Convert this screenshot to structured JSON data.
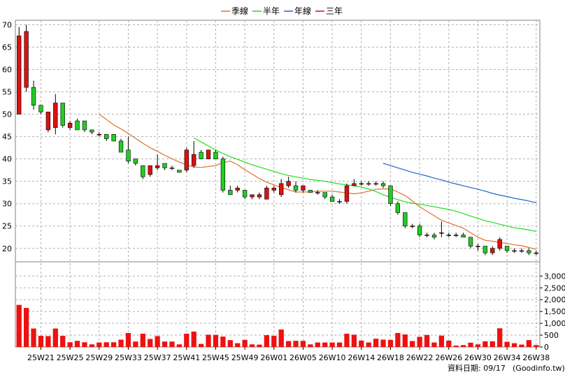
{
  "chart_data": {
    "type": "candlestick+volume",
    "legend": [
      {
        "name": "季線",
        "color": "#e0702a"
      },
      {
        "name": "半年",
        "color": "#22dd22"
      },
      {
        "name": "年線",
        "color": "#2266cc"
      },
      {
        "name": "三年",
        "color": "#dd1111"
      }
    ],
    "colors": {
      "up": "#dd1111",
      "down": "#22cc22",
      "volume": "#ee1111",
      "grid": "#b0b0b0"
    },
    "price_axis": {
      "min": 17,
      "max": 71,
      "ticks": [
        20,
        25,
        30,
        35,
        40,
        45,
        50,
        55,
        60,
        65,
        70
      ]
    },
    "volume_axis": {
      "min": 0,
      "max": 3600,
      "ticks": [
        0,
        500,
        1000,
        1500,
        2000,
        2500,
        3000
      ],
      "tick_labels": [
        "0",
        "500",
        "1,000",
        "1,500",
        "2,000",
        "2,500",
        "3,000"
      ]
    },
    "x_labels": [
      {
        "i": 3,
        "label": "25W21"
      },
      {
        "i": 7,
        "label": "25W25"
      },
      {
        "i": 11,
        "label": "25W29"
      },
      {
        "i": 15,
        "label": "25W33"
      },
      {
        "i": 19,
        "label": "25W37"
      },
      {
        "i": 23,
        "label": "25W41"
      },
      {
        "i": 27,
        "label": "25W45"
      },
      {
        "i": 31,
        "label": "25W49"
      },
      {
        "i": 35,
        "label": "26W01"
      },
      {
        "i": 39,
        "label": "26W05"
      },
      {
        "i": 43,
        "label": "26W10"
      },
      {
        "i": 47,
        "label": "26W14"
      },
      {
        "i": 51,
        "label": "26W18"
      },
      {
        "i": 55,
        "label": "26W22"
      },
      {
        "i": 59,
        "label": "26W26"
      },
      {
        "i": 63,
        "label": "26W30"
      },
      {
        "i": 67,
        "label": "26W34"
      },
      {
        "i": 71,
        "label": "26W38"
      }
    ],
    "candles": [
      [
        50,
        67.5,
        69.5,
        50
      ],
      [
        56,
        68.5,
        70,
        55
      ],
      [
        56,
        52,
        57.5,
        51
      ],
      [
        52,
        50.5,
        52,
        50
      ],
      [
        46.5,
        50.5,
        50.5,
        46
      ],
      [
        47,
        52.5,
        54.5,
        45.5
      ],
      [
        52.5,
        47.5,
        52.5,
        47
      ],
      [
        47,
        48,
        48.5,
        46.5
      ],
      [
        48.5,
        46.5,
        49,
        46.5
      ],
      [
        48.5,
        46.5,
        48.5,
        46
      ],
      [
        46.5,
        46,
        46.5,
        45.5
      ],
      [
        45.5,
        45.5,
        46,
        45
      ],
      [
        45.5,
        44.5,
        45.5,
        44
      ],
      [
        45.5,
        44,
        45.5,
        44
      ],
      [
        44,
        41.5,
        44.5,
        41.5
      ],
      [
        42,
        39.5,
        45,
        39
      ],
      [
        40,
        39,
        40,
        38.5
      ],
      [
        38.5,
        36,
        38.5,
        35.5
      ],
      [
        36.5,
        38.5,
        38.5,
        36
      ],
      [
        38,
        38.5,
        41,
        37.5
      ],
      [
        39,
        38,
        39,
        37.5
      ],
      [
        38,
        38,
        38.5,
        37.5
      ],
      [
        37.5,
        37,
        37.5,
        37
      ],
      [
        37.5,
        42,
        42.5,
        37
      ],
      [
        38.5,
        41,
        44,
        38
      ],
      [
        41.5,
        40,
        42,
        40
      ],
      [
        40,
        42,
        42,
        40
      ],
      [
        41.5,
        40,
        42,
        40
      ],
      [
        40,
        33,
        40.5,
        32.5
      ],
      [
        33,
        32,
        34,
        32
      ],
      [
        33,
        33.5,
        34,
        32.5
      ],
      [
        33,
        31.5,
        33,
        31
      ],
      [
        31.5,
        32,
        32,
        31
      ],
      [
        31.5,
        32,
        32.5,
        31
      ],
      [
        31,
        33.5,
        34,
        31
      ],
      [
        33,
        33.5,
        34,
        32.5
      ],
      [
        32,
        34.5,
        35.5,
        31.5
      ],
      [
        34,
        35,
        36,
        33.5
      ],
      [
        34,
        33,
        35,
        32.5
      ],
      [
        33,
        34,
        34,
        32.5
      ],
      [
        33,
        32.5,
        33,
        32.5
      ],
      [
        32.5,
        32.5,
        33,
        32
      ],
      [
        32.5,
        31.5,
        32.5,
        31
      ],
      [
        31.5,
        30.5,
        32,
        30.5
      ],
      [
        30.5,
        30.5,
        31,
        30
      ],
      [
        30.5,
        34,
        34.5,
        30
      ],
      [
        34,
        34.5,
        35.5,
        34
      ],
      [
        34.5,
        34.5,
        35,
        34
      ],
      [
        34.5,
        34.5,
        35,
        34
      ],
      [
        34.5,
        34.5,
        35,
        34
      ],
      [
        34.5,
        34,
        35,
        33.5
      ],
      [
        34,
        30,
        34,
        29.5
      ],
      [
        30,
        28,
        30.5,
        27.5
      ],
      [
        28,
        25,
        28,
        24.5
      ],
      [
        25,
        25,
        25.5,
        24.5
      ],
      [
        25,
        23,
        25.5,
        22.5
      ],
      [
        23,
        23,
        23.5,
        22.5
      ],
      [
        23,
        22.5,
        23.5,
        22
      ],
      [
        23.5,
        23.5,
        26,
        22.5
      ],
      [
        23,
        23,
        23.5,
        22.5
      ],
      [
        23,
        23,
        23.5,
        22.5
      ],
      [
        23,
        22.5,
        23.5,
        22.5
      ],
      [
        22.5,
        20.5,
        22.5,
        20
      ],
      [
        20.5,
        20.5,
        21,
        19.5
      ],
      [
        20.5,
        19,
        20.5,
        18.5
      ],
      [
        19,
        20,
        20.5,
        18.5
      ],
      [
        20,
        22,
        22.5,
        19.5
      ],
      [
        20.5,
        19.5,
        20.5,
        19
      ],
      [
        19.5,
        19.5,
        20,
        19
      ],
      [
        19.5,
        19.5,
        20,
        19
      ],
      [
        19.5,
        19,
        20,
        18.5
      ],
      [
        19,
        19,
        19.5,
        18.5
      ]
    ],
    "volume": [
      1780,
      1650,
      780,
      470,
      460,
      780,
      470,
      200,
      260,
      200,
      110,
      190,
      200,
      200,
      310,
      590,
      230,
      560,
      340,
      460,
      230,
      230,
      110,
      560,
      650,
      130,
      520,
      510,
      440,
      290,
      160,
      300,
      110,
      100,
      500,
      470,
      740,
      250,
      260,
      260,
      110,
      190,
      190,
      190,
      190,
      560,
      520,
      270,
      190,
      350,
      310,
      300,
      590,
      530,
      250,
      430,
      510,
      190,
      480,
      270,
      60,
      80,
      180,
      110,
      240,
      240,
      790,
      220,
      160,
      100,
      290,
      80
    ],
    "ma_quarter": {
      "start": 11,
      "values": [
        50,
        48.8,
        47.6,
        46.7,
        45.7,
        44.6,
        43.5,
        42.5,
        41.7,
        40.8,
        40,
        39.3,
        38.7,
        38.2,
        38.1,
        38.3,
        38.5,
        39.2,
        39.5,
        38.7,
        37.6,
        36.6,
        35.6,
        34.8,
        34.2,
        33.6,
        33.1,
        32.6,
        32.6,
        32.6,
        32.8,
        32.8,
        32.8,
        32.6,
        32.4,
        32.2,
        32.4,
        32.8,
        33.2,
        33.3,
        33.3,
        32.6,
        31.8,
        30.6,
        29.3,
        28.3,
        27.3,
        26.3,
        25.7,
        25.1,
        24.5,
        23.5,
        22.5,
        21.8,
        21.6,
        21.3,
        21.1,
        20.8,
        20.6,
        20.2,
        19.8
      ]
    },
    "ma_half": {
      "start": 24,
      "values": [
        44.7,
        43.8,
        42.9,
        42,
        41.2,
        40.5,
        39.9,
        39.3,
        38.7,
        38.2,
        37.7,
        37.2,
        36.7,
        36.3,
        36,
        35.7,
        35.4,
        35.2,
        35,
        34.7,
        34.4,
        34.2,
        34,
        33.7,
        33.3,
        32.7,
        32,
        31.4,
        30.9,
        30.4,
        30.1,
        29.9,
        29.6,
        29.3,
        29,
        28.7,
        28.3,
        27.8,
        27.2,
        26.7,
        26.2,
        25.8,
        25.4,
        25,
        24.6,
        24.4,
        24.1,
        23.8
      ]
    },
    "ma_year": {
      "start": 50,
      "values": [
        39,
        38.5,
        38,
        37.5,
        37,
        36.6,
        36.2,
        35.7,
        35.3,
        34.8,
        34.4,
        34,
        33.6,
        33.2,
        32.8,
        32.3,
        31.9,
        31.6,
        31.2,
        30.9,
        30.6,
        30.2
      ]
    }
  },
  "source": {
    "label": "資料日期: 09/17",
    "site": "(Goodinfo.tw)"
  }
}
